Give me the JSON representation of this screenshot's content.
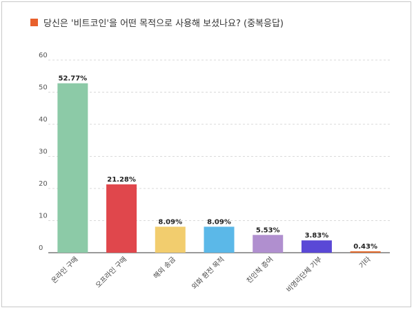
{
  "title": {
    "text": "당신은 '비트코인'을 어떤 목적으로 사용해 보셨나요? (중복응답)",
    "marker_color": "#e8602c"
  },
  "chart_data": {
    "type": "bar",
    "title": "당신은 '비트코인'을 어떤 목적으로 사용해 보셨나요? (중복응답)",
    "xlabel": "",
    "ylabel": "",
    "ylim": [
      0,
      60
    ],
    "yticks": [
      0,
      10,
      20,
      30,
      40,
      50,
      60
    ],
    "grid": true,
    "legend": "none",
    "categories": [
      "온라인 구매",
      "오프라인 구매",
      "해외 송금",
      "외화 환전 목적",
      "친인척 증여",
      "비영리단체 기부",
      "기타"
    ],
    "values": [
      52.77,
      21.28,
      8.09,
      8.09,
      5.53,
      3.83,
      0.43
    ],
    "value_labels": [
      "52.77%",
      "21.28%",
      "8.09%",
      "8.09%",
      "5.53%",
      "3.83%",
      "0.43%"
    ],
    "colors": [
      "#8ccaa7",
      "#e0474c",
      "#f2cd6e",
      "#5bb8e8",
      "#b08fcf",
      "#5a48d6",
      "#e26a2c"
    ]
  }
}
